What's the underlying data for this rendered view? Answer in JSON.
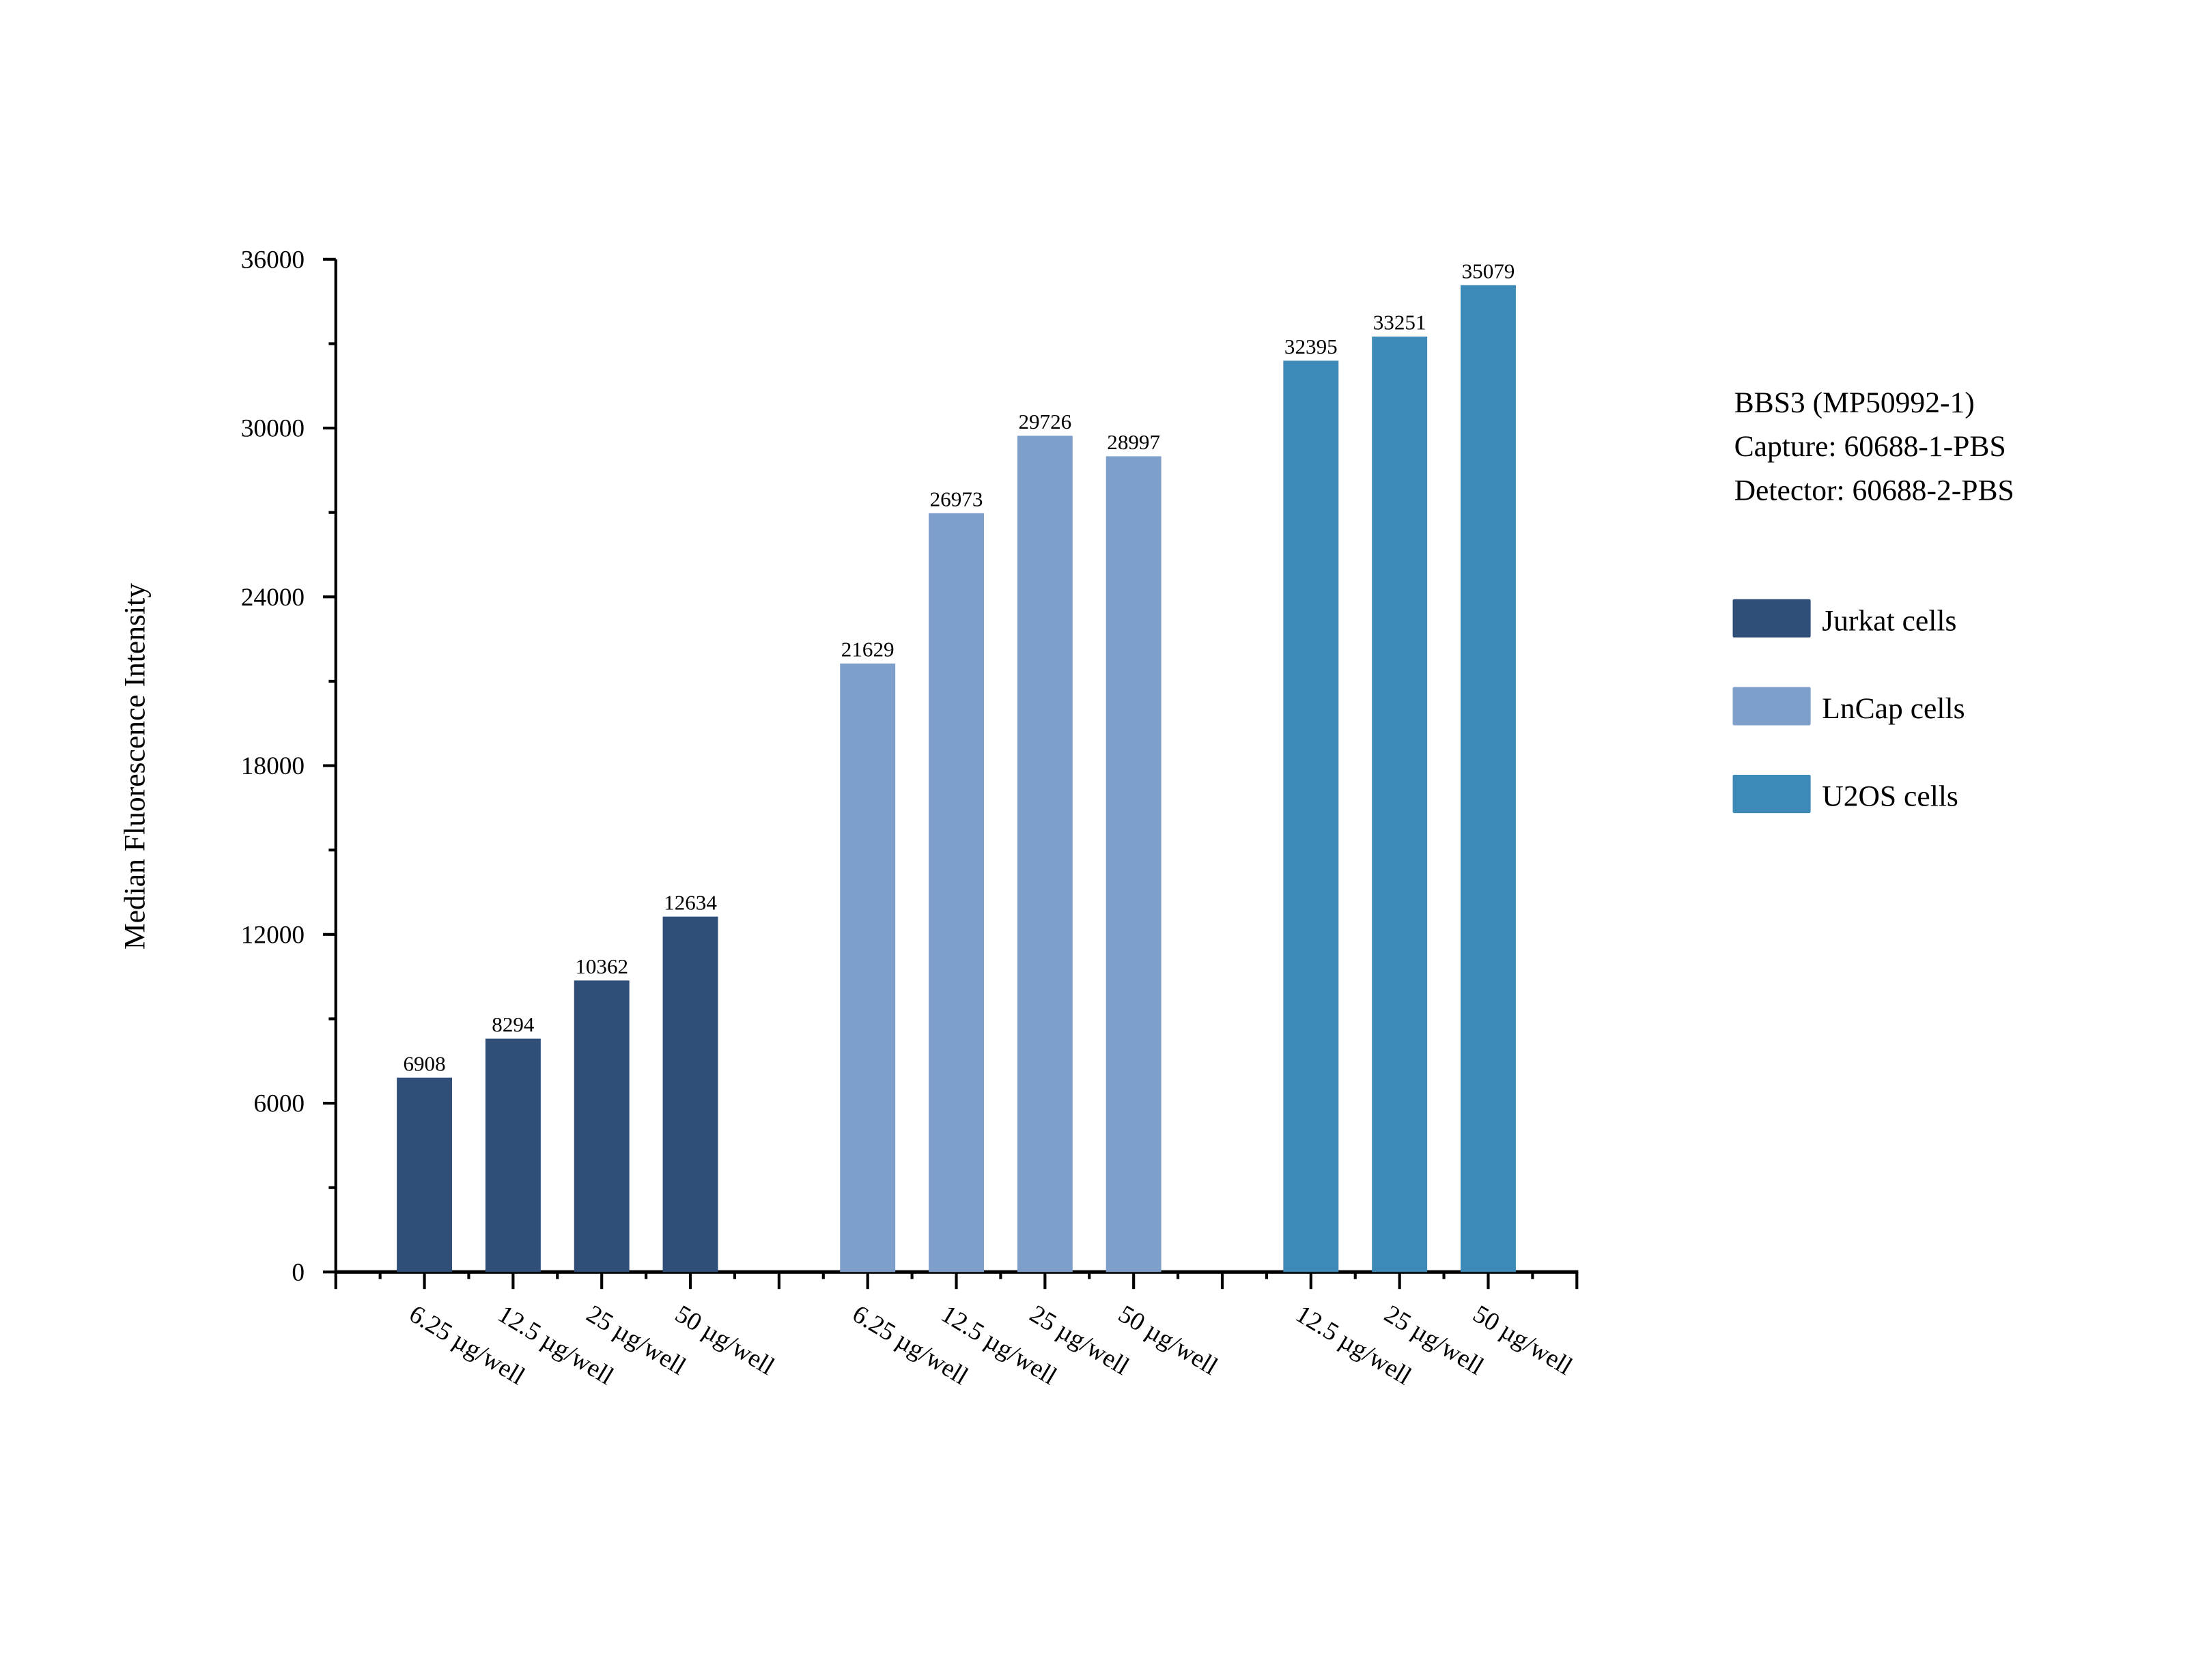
{
  "chart_data": {
    "type": "bar",
    "title": "",
    "xlabel": "",
    "ylabel": "Median Fluorescence Intensity",
    "ylim": [
      0,
      36000
    ],
    "yticks": [
      0,
      6000,
      12000,
      18000,
      24000,
      30000,
      36000
    ],
    "grid": false,
    "legend_placement": "right",
    "annotation": [
      "BBS3 (MP50992-1)",
      "Capture: 60688-1-PBS",
      "Detector: 60688-2-PBS"
    ],
    "series": [
      {
        "name": "Jurkat cells",
        "color": "#2f4e78",
        "categories": [
          "6.25 µg/well",
          "12.5 µg/well",
          "25 µg/well",
          "50 µg/well"
        ],
        "values": [
          6908,
          8294,
          10362,
          12634
        ]
      },
      {
        "name": "LnCap cells",
        "color": "#7f9fcb",
        "categories": [
          "6.25 µg/well",
          "12.5 µg/well",
          "25 µg/well",
          "50 µg/well"
        ],
        "values": [
          21629,
          26973,
          29726,
          28997
        ]
      },
      {
        "name": "U2OS cells",
        "color": "#3d8ab8",
        "categories": [
          "12.5 µg/well",
          "25 µg/well",
          "50 µg/well"
        ],
        "values": [
          32395,
          33251,
          35079
        ]
      }
    ]
  }
}
